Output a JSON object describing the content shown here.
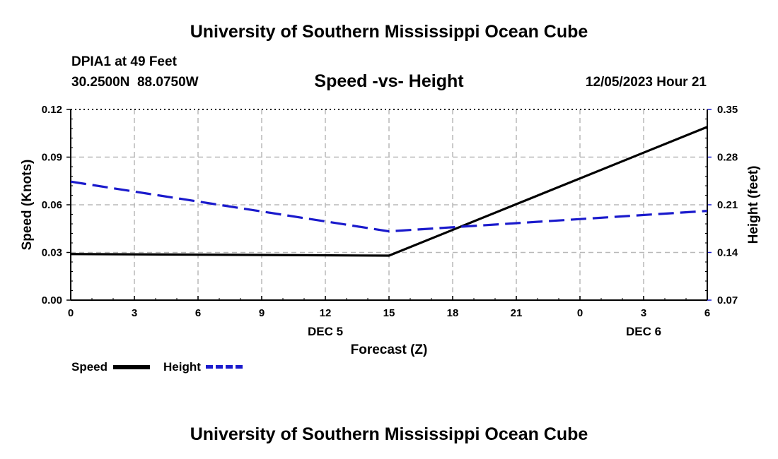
{
  "header": {
    "title": "University of Southern Mississippi Ocean Cube",
    "station": "DPIA1 at 49 Feet",
    "coords": "30.2500N  88.0750W",
    "datetime": "12/05/2023 Hour 21"
  },
  "footer": {
    "title": "University of Southern Mississippi Ocean Cube"
  },
  "legend": {
    "speed_label": "Speed",
    "height_label": "Height"
  },
  "colors": {
    "speed": "#000000",
    "height": "#1a1acc",
    "grid": "#b8b8b8"
  },
  "chart_data": {
    "type": "line",
    "title": "Speed -vs- Height",
    "xlabel": "Forecast (Z)",
    "ylabel": "Speed (Knots)",
    "y2label": "Height (feet)",
    "x_tick_labels": [
      "0",
      "3",
      "6",
      "9",
      "12",
      "15",
      "18",
      "21",
      "0",
      "3",
      "6"
    ],
    "date_labels": [
      {
        "text": "DEC 5",
        "at_index": 4
      },
      {
        "text": "DEC 6",
        "at_index": 9
      }
    ],
    "ylim": [
      0,
      0.12
    ],
    "yticks": [
      "0.00",
      "0.03",
      "0.06",
      "0.09",
      "0.12"
    ],
    "y2lim": [
      0.07,
      0.35
    ],
    "y2ticks": [
      "0.07",
      "0.14",
      "0.21",
      "0.28",
      "0.35"
    ],
    "x": [
      0,
      15,
      30
    ],
    "series": [
      {
        "name": "Speed",
        "axis": "left",
        "style": "solid",
        "values": [
          0.029,
          0.028,
          0.109
        ]
      },
      {
        "name": "Height",
        "axis": "right",
        "style": "dashed",
        "values": [
          0.244,
          0.171,
          0.201
        ]
      }
    ]
  }
}
